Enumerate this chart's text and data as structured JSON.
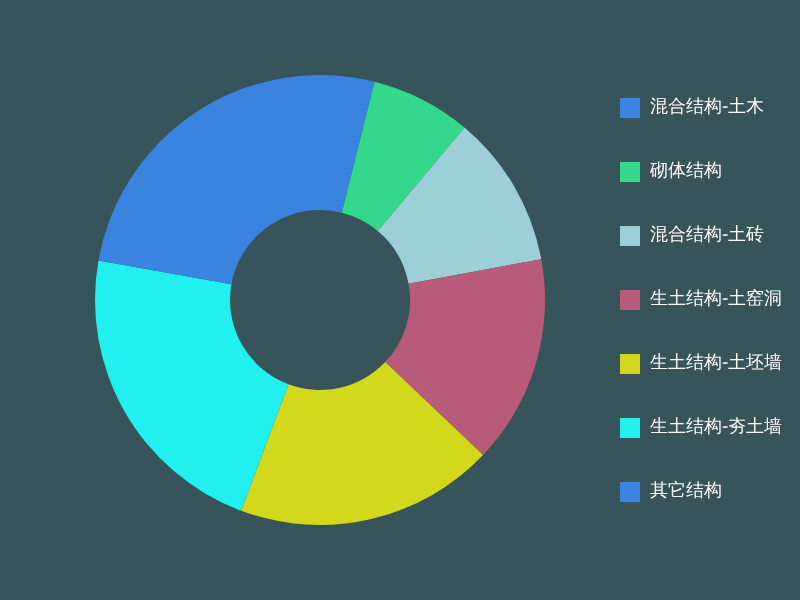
{
  "chart_data": {
    "type": "donut",
    "categories": [
      "混合结构-土木",
      "砌体结构",
      "混合结构-土砖",
      "生土结构-土窑洞",
      "生土结构-土坯墙",
      "生土结构-夯土墙",
      "其它结构"
    ],
    "values": [
      3.9,
      7.2,
      11.0,
      15.0,
      18.6,
      22.1,
      22.2
    ],
    "colors": [
      "#3a84e0",
      "#33d88a",
      "#9ccfd8",
      "#b85b7a",
      "#d4d81c",
      "#22f0ee",
      "#3a84e0"
    ],
    "legend": "right"
  }
}
